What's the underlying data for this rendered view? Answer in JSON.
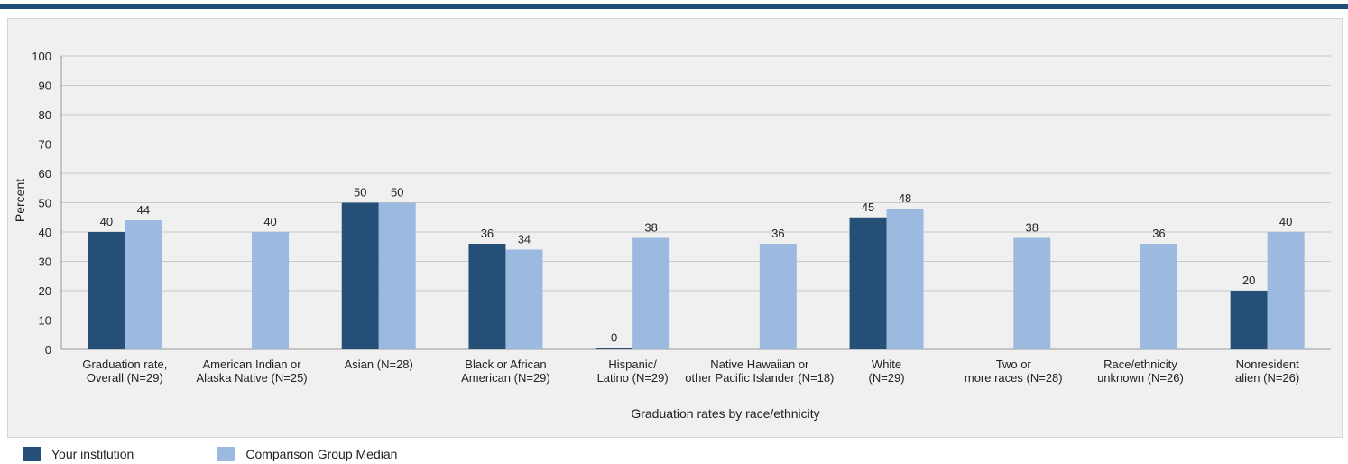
{
  "chart_data": {
    "type": "bar",
    "ylabel": "Percent",
    "xlabel": "Graduation rates by race/ethnicity",
    "ylim": [
      0,
      100
    ],
    "yticks": [
      0,
      10,
      20,
      30,
      40,
      50,
      60,
      70,
      80,
      90,
      100
    ],
    "grid": true,
    "legend_position": "bottom-left",
    "categories": [
      [
        "Graduation rate,",
        "Overall (N=29)"
      ],
      [
        "American Indian or",
        "Alaska Native (N=25)"
      ],
      [
        "Asian (N=28)"
      ],
      [
        "Black or African",
        "American (N=29)"
      ],
      [
        "Hispanic/",
        "Latino (N=29)"
      ],
      [
        "Native Hawaiian or",
        "other Pacific Islander (N=18)"
      ],
      [
        "White",
        "(N=29)"
      ],
      [
        "Two or",
        "more races (N=28)"
      ],
      [
        "Race/ethnicity",
        "unknown (N=26)"
      ],
      [
        "Nonresident",
        "alien (N=26)"
      ]
    ],
    "series": [
      {
        "name": "Your institution",
        "color": "#264f78",
        "values": [
          40,
          null,
          50,
          36,
          0,
          null,
          45,
          null,
          null,
          20
        ]
      },
      {
        "name": "Comparison Group Median",
        "color": "#9cb9df",
        "values": [
          44,
          40,
          50,
          34,
          38,
          36,
          48,
          38,
          36,
          40
        ]
      }
    ]
  },
  "colors": {
    "top_rule": "#1f4e79",
    "grid": "#c8c8c8",
    "axis_text": "#222222"
  }
}
